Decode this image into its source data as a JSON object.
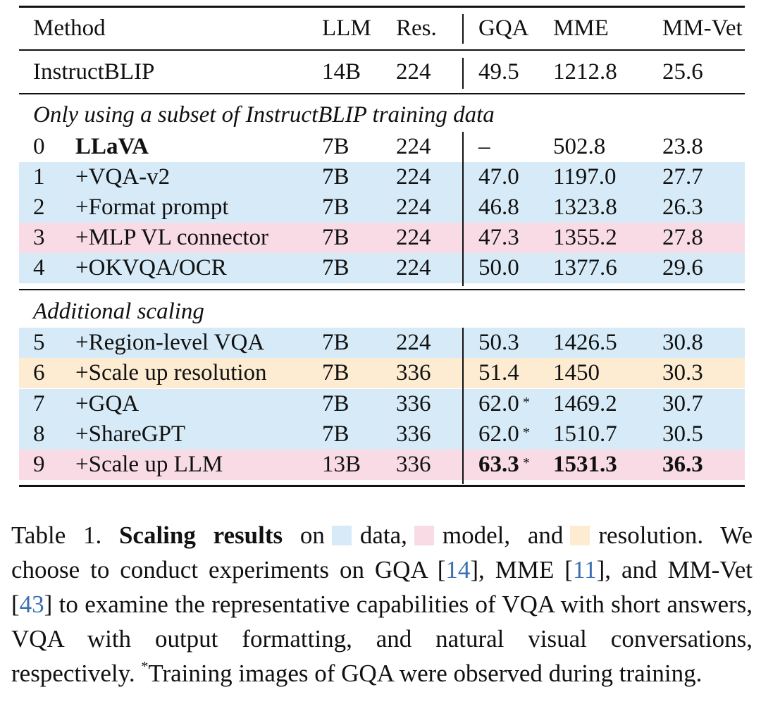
{
  "colors": {
    "data": "#d6ebf7",
    "model": "#f9dbe6",
    "resolution": "#fdecd2",
    "citation": "#3a6fb0"
  },
  "table": {
    "headers": {
      "method": "Method",
      "llm": "LLM",
      "res": "Res.",
      "gqa": "GQA",
      "mme": "MME",
      "mmvet": "MM-Vet"
    },
    "baseline": {
      "method": "InstructBLIP",
      "llm": "14B",
      "res": "224",
      "gqa": "49.5",
      "mme": "1212.8",
      "mmvet": "25.6"
    },
    "section1": "Only using a subset of InstructBLIP training data",
    "section2": "Additional scaling",
    "rows": [
      {
        "num": "0",
        "method": "LLaVA",
        "llm": "7B",
        "res": "224",
        "gqa": "–",
        "mme": "502.8",
        "mmvet": "23.8",
        "highlight": "none"
      },
      {
        "num": "1",
        "method": "+VQA-v2",
        "llm": "7B",
        "res": "224",
        "gqa": "47.0",
        "mme": "1197.0",
        "mmvet": "27.7",
        "highlight": "data"
      },
      {
        "num": "2",
        "method": "+Format prompt",
        "llm": "7B",
        "res": "224",
        "gqa": "46.8",
        "mme": "1323.8",
        "mmvet": "26.3",
        "highlight": "data"
      },
      {
        "num": "3",
        "method": "+MLP VL connector",
        "llm": "7B",
        "res": "224",
        "gqa": "47.3",
        "mme": "1355.2",
        "mmvet": "27.8",
        "highlight": "model"
      },
      {
        "num": "4",
        "method": "+OKVQA/OCR",
        "llm": "7B",
        "res": "224",
        "gqa": "50.0",
        "mme": "1377.6",
        "mmvet": "29.6",
        "highlight": "data"
      },
      {
        "num": "5",
        "method": "+Region-level VQA",
        "llm": "7B",
        "res": "224",
        "gqa": "50.3",
        "mme": "1426.5",
        "mmvet": "30.8",
        "highlight": "data"
      },
      {
        "num": "6",
        "method": "+Scale up resolution",
        "llm": "7B",
        "res": "336",
        "gqa": "51.4",
        "mme": "1450",
        "mmvet": "30.3",
        "highlight": "resolution"
      },
      {
        "num": "7",
        "method": "+GQA",
        "llm": "7B",
        "res": "336",
        "gqa": "62.0",
        "gqa_star": "*",
        "mme": "1469.2",
        "mmvet": "30.7",
        "highlight": "data"
      },
      {
        "num": "8",
        "method": "+ShareGPT",
        "llm": "7B",
        "res": "336",
        "gqa": "62.0",
        "gqa_star": "*",
        "mme": "1510.7",
        "mmvet": "30.5",
        "highlight": "data"
      },
      {
        "num": "9",
        "method": "+Scale up LLM",
        "llm": "13B",
        "res": "336",
        "gqa": "63.3",
        "gqa_star": "*",
        "mme": "1531.3",
        "mmvet": "36.3",
        "highlight": "model"
      }
    ]
  },
  "caption": {
    "label": "Table 1.",
    "bold": "Scaling results",
    "on": "on",
    "data": "data,",
    "model": "model, and",
    "resolution": "resolution.",
    "line2a": "We choose to conduct experiments on GQA [",
    "cite1": "14",
    "line2b": "], MME [",
    "cite2": "11",
    "line2c": "], and MM-Vet [",
    "cite3": "43",
    "line2d": "] to examine the representative capabilities of VQA with short answers, VQA with output formatting, and natural visual conversations, respectively.",
    "star": "*",
    "line3": "Training images of GQA were observed during training."
  }
}
